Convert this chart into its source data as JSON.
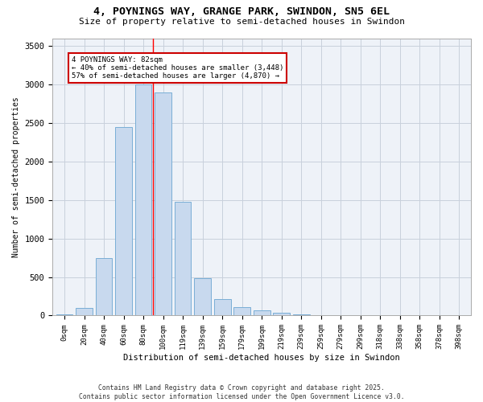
{
  "title_line1": "4, POYNINGS WAY, GRANGE PARK, SWINDON, SN5 6EL",
  "title_line2": "Size of property relative to semi-detached houses in Swindon",
  "xlabel": "Distribution of semi-detached houses by size in Swindon",
  "ylabel": "Number of semi-detached properties",
  "footnote": "Contains HM Land Registry data © Crown copyright and database right 2025.\nContains public sector information licensed under the Open Government Licence v3.0.",
  "categories": [
    "0sqm",
    "20sqm",
    "40sqm",
    "60sqm",
    "80sqm",
    "100sqm",
    "119sqm",
    "139sqm",
    "159sqm",
    "179sqm",
    "199sqm",
    "219sqm",
    "239sqm",
    "259sqm",
    "279sqm",
    "299sqm",
    "318sqm",
    "338sqm",
    "358sqm",
    "378sqm",
    "398sqm"
  ],
  "values": [
    20,
    100,
    750,
    2450,
    3000,
    2900,
    1480,
    490,
    210,
    110,
    65,
    35,
    15,
    5,
    2,
    1,
    1,
    0,
    0,
    0,
    0
  ],
  "bar_color": "#c8d9ee",
  "bar_edge_color": "#7aaed6",
  "grid_color": "#c8d0dc",
  "bg_color": "#eef2f8",
  "property_line_x": 4.5,
  "annotation_title": "4 POYNINGS WAY: 82sqm",
  "annotation_line1": "← 40% of semi-detached houses are smaller (3,448)",
  "annotation_line2": "57% of semi-detached houses are larger (4,870) →",
  "annotation_box_color": "#cc0000",
  "ylim": [
    0,
    3600
  ],
  "yticks": [
    0,
    500,
    1000,
    1500,
    2000,
    2500,
    3000,
    3500
  ]
}
